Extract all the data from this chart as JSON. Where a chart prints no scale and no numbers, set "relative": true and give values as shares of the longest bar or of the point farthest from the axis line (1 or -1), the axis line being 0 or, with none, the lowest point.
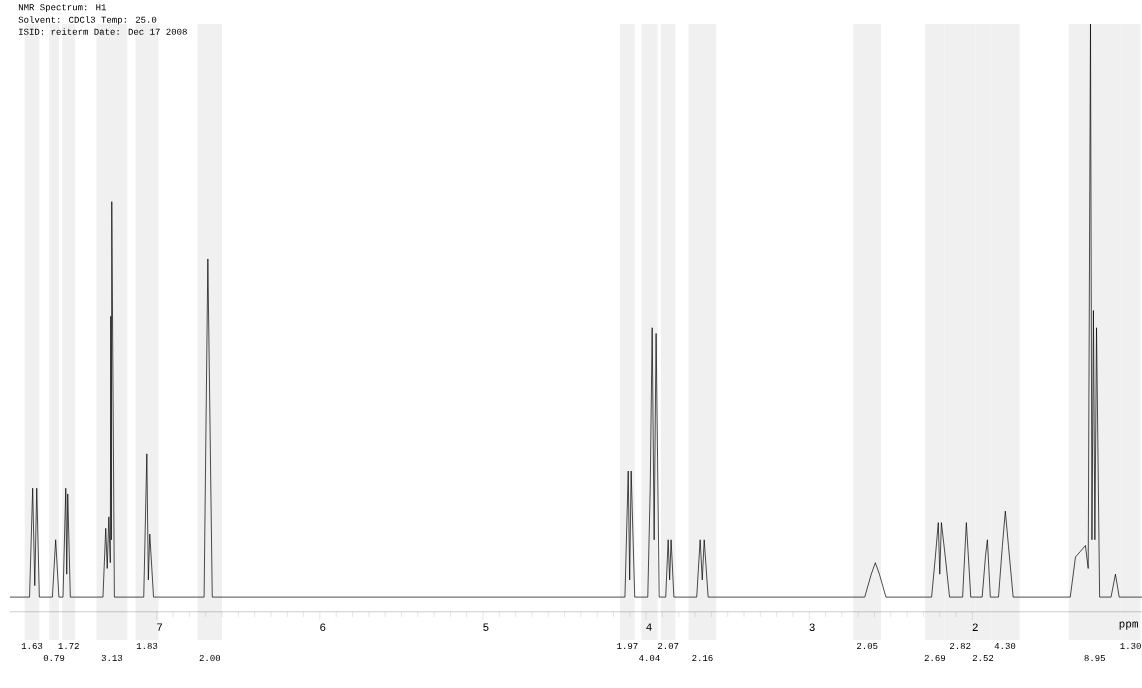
{
  "chart_data": {
    "type": "line",
    "relative": true,
    "xlabel": "ppm",
    "color": "#000000",
    "marker": "none",
    "line_style": "solid",
    "xlim": [
      7.9,
      0.96
    ],
    "xticks": [
      7,
      6,
      5,
      4,
      3,
      2
    ],
    "x": [
      7.9,
      7.78,
      7.761,
      7.748,
      7.736,
      7.72,
      7.64,
      7.62,
      7.6,
      7.575,
      7.558,
      7.552,
      7.546,
      7.53,
      7.33,
      7.313,
      7.304,
      7.294,
      7.285,
      7.282,
      7.279,
      7.276,
      7.26,
      7.08,
      7.061,
      7.052,
      7.043,
      7.02,
      6.71,
      6.687,
      6.66,
      4.13,
      4.11,
      4.101,
      4.092,
      4.07,
      3.99,
      3.975,
      3.963,
      3.951,
      3.939,
      3.92,
      3.88,
      3.865,
      3.856,
      3.847,
      3.83,
      3.69,
      3.669,
      3.656,
      3.644,
      3.62,
      2.66,
      2.62,
      2.595,
      2.57,
      2.53,
      2.25,
      2.227,
      2.209,
      2.2,
      2.19,
      2.166,
      2.14,
      2.06,
      2.037,
      2.01,
      1.94,
      1.92,
      1.908,
      1.89,
      1.84,
      1.816,
      1.798,
      1.779,
      1.75,
      1.4,
      1.368,
      1.337,
      1.307,
      1.29,
      1.276,
      1.267,
      1.258,
      1.249,
      1.239,
      1.22,
      1.15,
      1.123,
      1.1,
      0.96
    ],
    "values": [
      0,
      0,
      0.19,
      0.02,
      0.19,
      0,
      0,
      0.1,
      0,
      0,
      0.19,
      0.04,
      0.18,
      0,
      0,
      0.12,
      0.05,
      0.14,
      0.06,
      0.49,
      0.1,
      0.69,
      0,
      0,
      0.25,
      0.03,
      0.11,
      0,
      0,
      0.59,
      0,
      0,
      0.22,
      0.03,
      0.22,
      0,
      0,
      0.19,
      0.47,
      0.1,
      0.46,
      0,
      0,
      0.1,
      0.03,
      0.1,
      0,
      0,
      0.1,
      0.03,
      0.1,
      0,
      0,
      0.04,
      0.06,
      0.04,
      0,
      0,
      0.07,
      0.13,
      0.04,
      0.13,
      0.07,
      0,
      0,
      0.13,
      0,
      0,
      0.07,
      0.1,
      0,
      0,
      0.09,
      0.15,
      0.09,
      0,
      0,
      0.07,
      0.08,
      0.09,
      0.05,
      1.0,
      0.1,
      0.5,
      0.1,
      0.47,
      0,
      0,
      0.04,
      0,
      0
    ],
    "annotations": [
      "NMR Spectrum: H1",
      "Solvent: CDCl3  Temp: 25.0",
      "ISID: reiterm  Date: Dec 17 2008"
    ],
    "bands": [
      {
        "axis": "x",
        "from": 7.81,
        "to": 7.72,
        "label": "1.63"
      },
      {
        "axis": "x",
        "from": 7.66,
        "to": 7.6,
        "label": "0.79"
      },
      {
        "axis": "x",
        "from": 7.58,
        "to": 7.5,
        "label": "1.72"
      },
      {
        "axis": "x",
        "from": 7.37,
        "to": 7.18,
        "label": "3.13"
      },
      {
        "axis": "x",
        "from": 7.13,
        "to": 6.99,
        "label": "1.83"
      },
      {
        "axis": "x",
        "from": 6.75,
        "to": 6.6,
        "label": "2.00"
      },
      {
        "axis": "x",
        "from": 4.16,
        "to": 4.07,
        "label": "1.97"
      },
      {
        "axis": "x",
        "from": 4.03,
        "to": 3.93,
        "label": "4.04"
      },
      {
        "axis": "x",
        "from": 3.91,
        "to": 3.82,
        "label": "2.07"
      },
      {
        "axis": "x",
        "from": 3.74,
        "to": 3.57,
        "label": "2.16"
      },
      {
        "axis": "x",
        "from": 2.73,
        "to": 2.56,
        "label": "2.05"
      },
      {
        "axis": "x",
        "from": 2.29,
        "to": 2.17,
        "label": "2.69"
      },
      {
        "axis": "x",
        "from": 2.17,
        "to": 1.98,
        "label": "2.82"
      },
      {
        "axis": "x",
        "from": 1.98,
        "to": 1.89,
        "label": "2.52"
      },
      {
        "axis": "x",
        "from": 1.89,
        "to": 1.71,
        "label": "4.30"
      },
      {
        "axis": "x",
        "from": 1.41,
        "to": 1.09,
        "label": "8.95"
      },
      {
        "axis": "x",
        "from": 1.09,
        "to": 0.97,
        "label": "1.30"
      }
    ]
  }
}
